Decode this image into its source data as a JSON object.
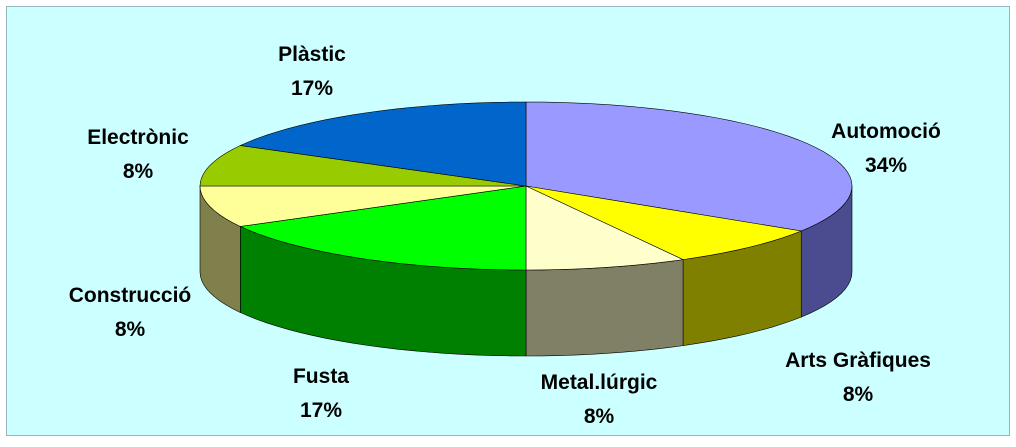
{
  "colors": {
    "background": "#ccffff",
    "frame_border": "#9ab6b6"
  },
  "chart_data": {
    "type": "pie",
    "three_d": true,
    "legend": "none",
    "data_labels": "category and percent, outside slices",
    "slices": [
      {
        "label": "Automoció",
        "percent_text": "34%",
        "value": 34,
        "top_color": "#9999ff",
        "side_color": "#4b4b8f"
      },
      {
        "label": "Arts Gràfiques",
        "percent_text": "8%",
        "value": 8,
        "top_color": "#ffff00",
        "side_color": "#808000"
      },
      {
        "label": "Metal.lúrgic",
        "percent_text": "8%",
        "value": 8,
        "top_color": "#ffffcc",
        "side_color": "#808066"
      },
      {
        "label": "Fusta",
        "percent_text": "17%",
        "value": 17,
        "top_color": "#00ff00",
        "side_color": "#008000"
      },
      {
        "label": "Construcció",
        "percent_text": "8%",
        "value": 8,
        "top_color": "#ffff99",
        "side_color": "#80804d"
      },
      {
        "label": "Electrònic",
        "percent_text": "8%",
        "value": 8,
        "top_color": "#99cc00",
        "side_color": "#4d6600"
      },
      {
        "label": "Plàstic",
        "percent_text": "17%",
        "value": 17,
        "top_color": "#0066cc",
        "side_color": "#003366"
      }
    ]
  }
}
